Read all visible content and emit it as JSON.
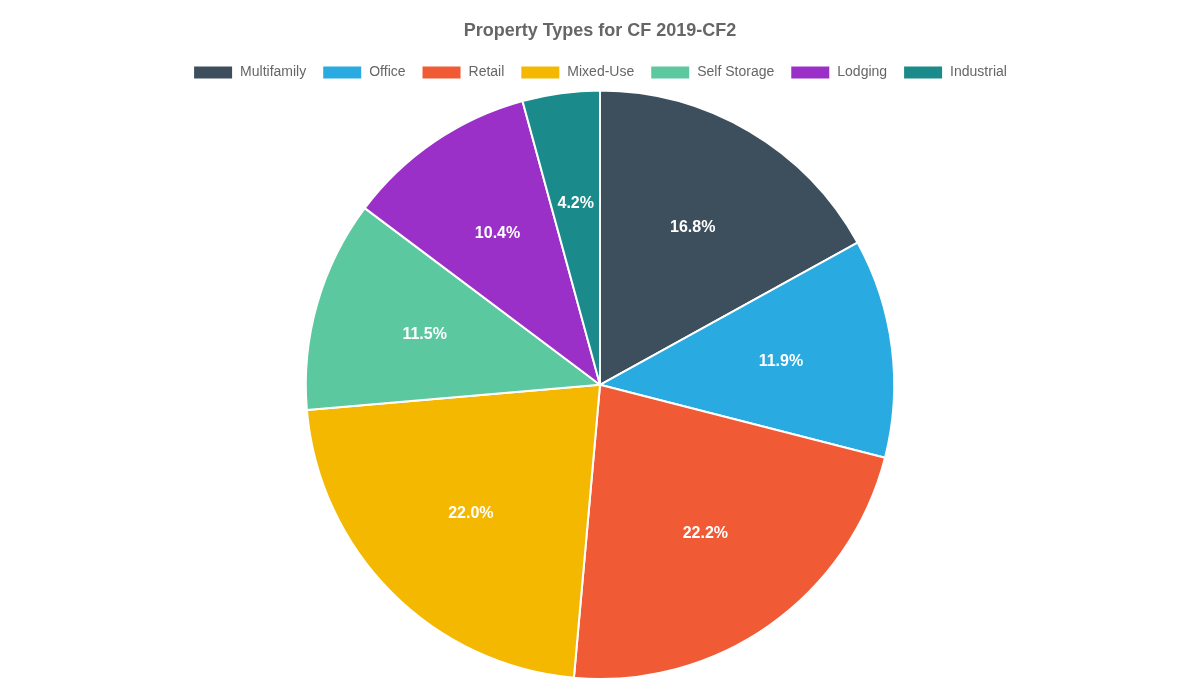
{
  "chart_data": {
    "type": "pie",
    "title": "Property Types for CF 2019-CF2",
    "categories": [
      "Multifamily",
      "Office",
      "Retail",
      "Mixed-Use",
      "Self Storage",
      "Lodging",
      "Industrial"
    ],
    "values": [
      16.8,
      11.9,
      22.2,
      22.0,
      11.5,
      10.4,
      4.2
    ],
    "value_labels": [
      "16.8%",
      "11.9%",
      "22.2%",
      "22.0%",
      "11.5%",
      "10.4%",
      "4.2%"
    ],
    "colors": [
      "#3d4f5c",
      "#29aae1",
      "#f05a35",
      "#f5b800",
      "#5bc8a0",
      "#9b30c8",
      "#1a8a8a"
    ],
    "data_labels": true,
    "legend": "top"
  }
}
